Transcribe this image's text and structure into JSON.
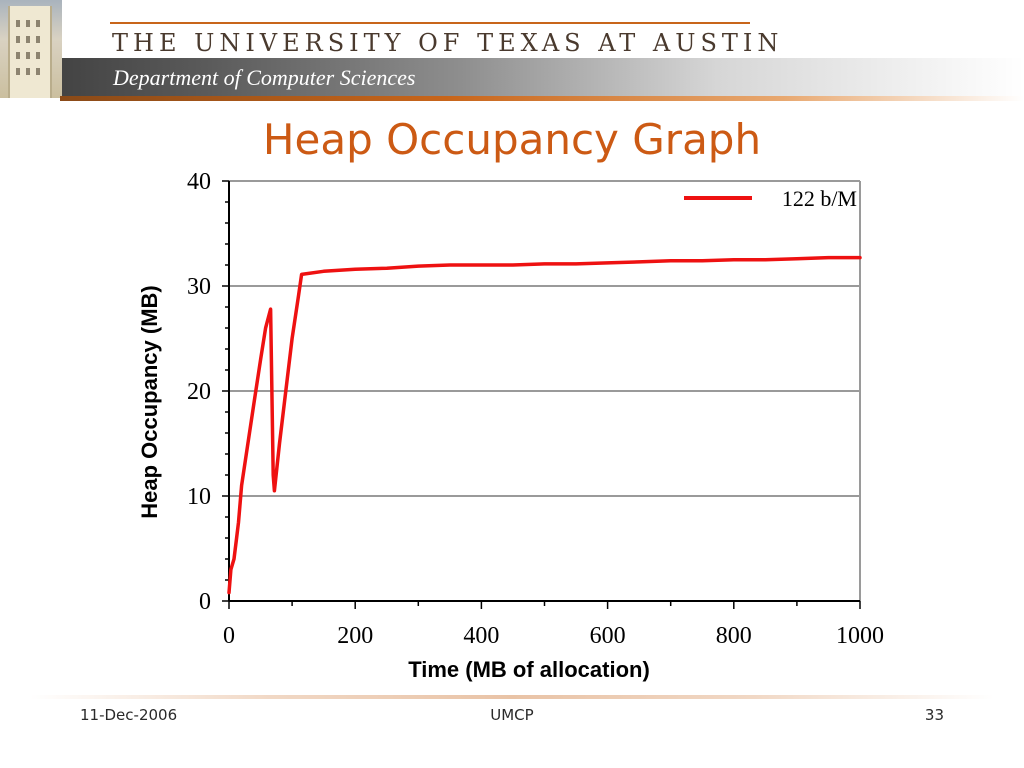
{
  "header": {
    "university": "THE UNIVERSITY OF TEXAS AT AUSTIN",
    "department": "Department of Computer Sciences"
  },
  "slide": {
    "title": "Heap Occupancy Graph"
  },
  "footer": {
    "date": "11-Dec-2006",
    "center": "UMCP",
    "page": "33"
  },
  "colors": {
    "series": "#ee1111",
    "title": "#cc5a14",
    "grid": "#9a9a9a"
  },
  "chart_data": {
    "type": "line",
    "xlabel": "Time (MB of allocation)",
    "ylabel": "Heap Occupancy (MB)",
    "xlim": [
      0,
      1000
    ],
    "ylim": [
      0,
      40
    ],
    "x_ticks": [
      "0",
      "200",
      "400",
      "600",
      "800",
      "1000"
    ],
    "y_ticks": [
      "0",
      "10",
      "20",
      "30",
      "40"
    ],
    "grid": "horizontal",
    "legend_position": "top-right",
    "series": [
      {
        "name": "122 b/M",
        "points": [
          [
            0,
            0.8
          ],
          [
            3,
            3
          ],
          [
            8,
            4
          ],
          [
            12,
            6
          ],
          [
            15,
            7.5
          ],
          [
            20,
            11
          ],
          [
            30,
            15
          ],
          [
            40,
            19
          ],
          [
            50,
            23
          ],
          [
            58,
            26
          ],
          [
            66,
            27.8
          ],
          [
            70,
            12
          ],
          [
            72,
            10.5
          ],
          [
            80,
            15
          ],
          [
            90,
            20
          ],
          [
            100,
            25
          ],
          [
            110,
            29
          ],
          [
            115,
            31.1
          ],
          [
            150,
            31.4
          ],
          [
            200,
            31.6
          ],
          [
            250,
            31.7
          ],
          [
            300,
            31.9
          ],
          [
            350,
            32.0
          ],
          [
            400,
            32.0
          ],
          [
            450,
            32.0
          ],
          [
            500,
            32.1
          ],
          [
            550,
            32.1
          ],
          [
            600,
            32.2
          ],
          [
            650,
            32.3
          ],
          [
            700,
            32.4
          ],
          [
            750,
            32.4
          ],
          [
            800,
            32.5
          ],
          [
            850,
            32.5
          ],
          [
            900,
            32.6
          ],
          [
            950,
            32.7
          ],
          [
            1000,
            32.7
          ]
        ]
      }
    ]
  }
}
